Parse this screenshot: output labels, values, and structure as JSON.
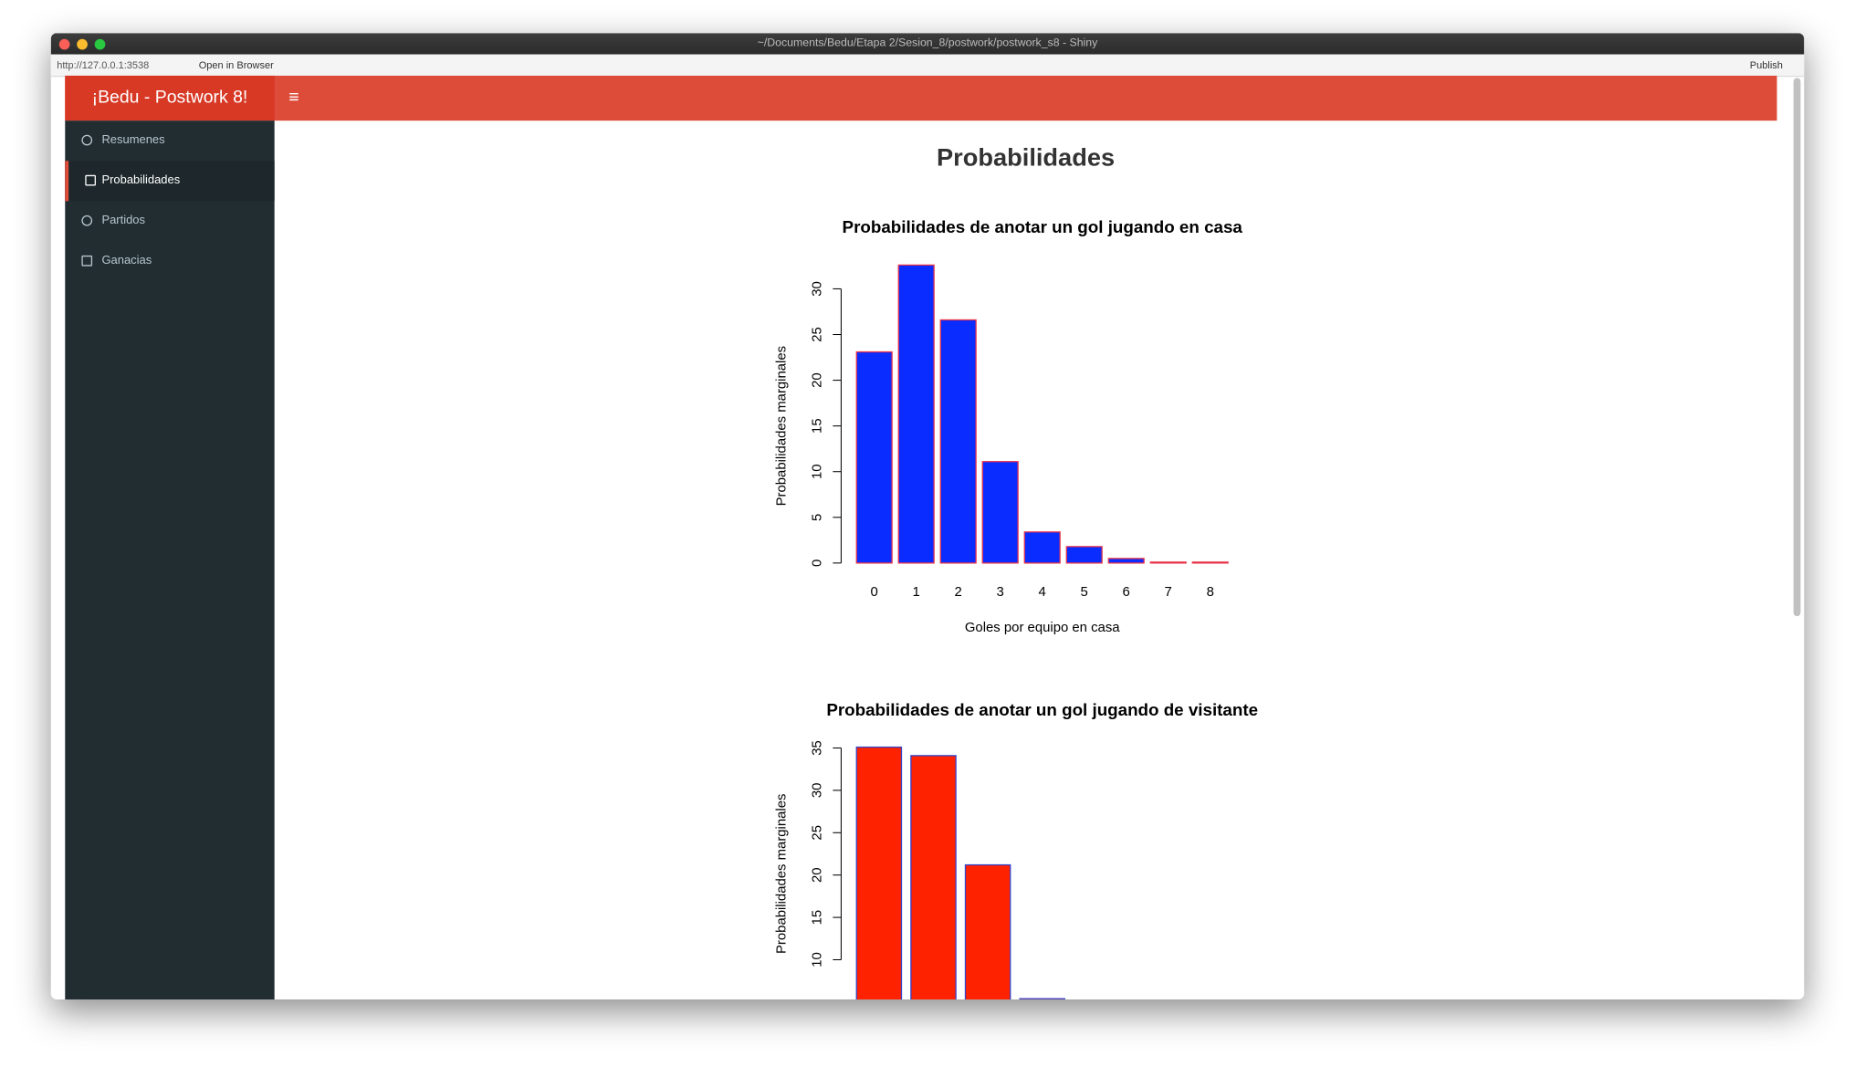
{
  "window": {
    "title": "~/Documents/Bedu/Etapa 2/Sesion_8/postwork/postwork_s8 - Shiny"
  },
  "toolbar": {
    "url": "http://127.0.0.1:3538",
    "open_in_browser": "Open in Browser",
    "publish": "Publish"
  },
  "header": {
    "brand": "¡Bedu - Postwork 8!"
  },
  "sidebar": {
    "items": [
      "Resumenes",
      "Probabilidades",
      "Partidos",
      "Ganacias"
    ]
  },
  "page": {
    "heading": "Probabilidades"
  },
  "chart_data": [
    {
      "type": "bar",
      "title": "Probabilidades de anotar un gol jugando en casa",
      "xlabel": "Goles por equipo en casa",
      "ylabel": "Probabilidades marginales",
      "categories": [
        "0",
        "1",
        "2",
        "3",
        "4",
        "5",
        "6",
        "7",
        "8"
      ],
      "values": [
        23.1,
        32.6,
        26.6,
        11.1,
        3.4,
        1.8,
        0.5,
        0.1,
        0.1
      ],
      "color": "#0a2cff",
      "edgecolor": "#e8334a",
      "ylim": [
        0,
        33
      ],
      "yticks": [
        0,
        5,
        10,
        15,
        20,
        25,
        30
      ]
    },
    {
      "type": "bar",
      "title": "Probabilidades de anotar un gol jugando de visitante",
      "ylabel": "Probabilidades marginales",
      "values": [
        35.1,
        34.1,
        21.2,
        5.4
      ],
      "color": "#ff2200",
      "edgecolor": "#3344cc",
      "ylim": [
        0,
        36
      ],
      "yticks": [
        10,
        15,
        20,
        25,
        30,
        35
      ]
    }
  ]
}
